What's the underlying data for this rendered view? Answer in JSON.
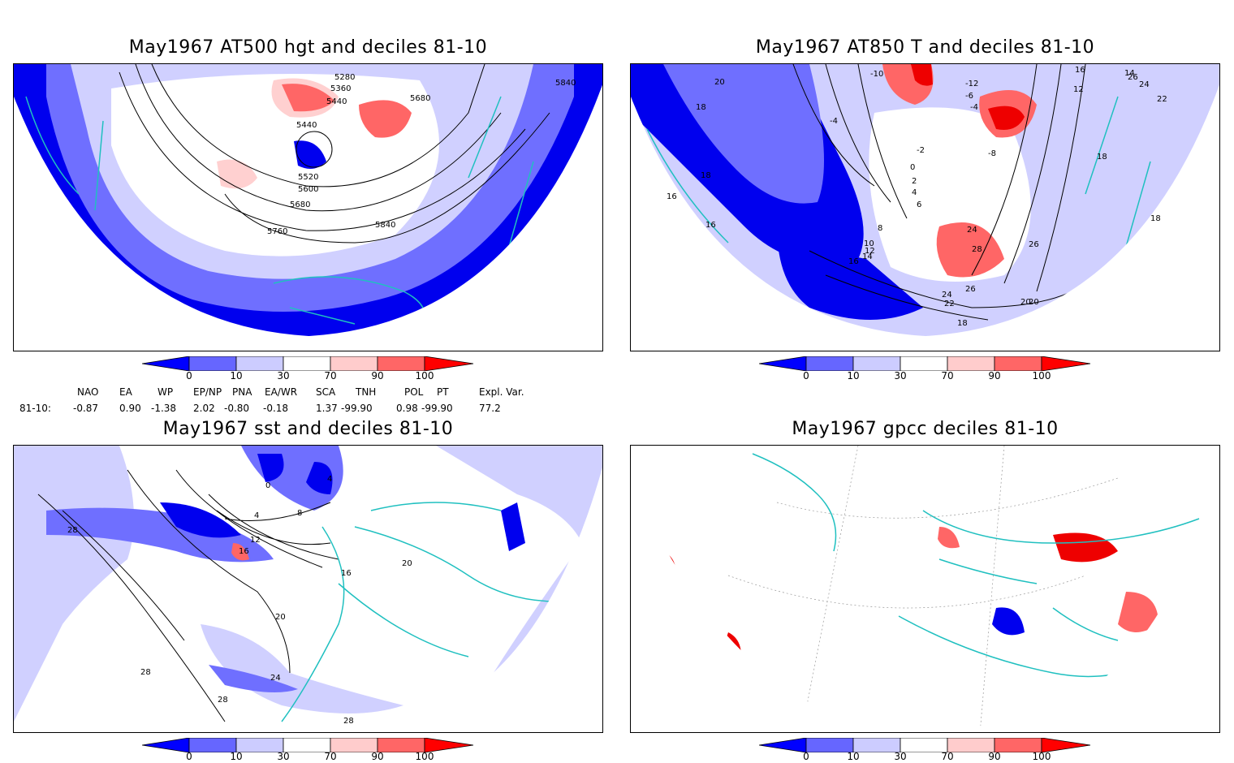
{
  "panels": [
    {
      "title": "May1967 AT500 hgt and deciles 81-10",
      "contour_labels": [
        "5280",
        "5360",
        "5440",
        "5680",
        "5840",
        "5440",
        "5520",
        "5600",
        "5680",
        "5760",
        "5840"
      ]
    },
    {
      "title": "May1967 AT850 T and deciles 81-10",
      "contour_labels": [
        "20",
        "-10",
        "-12",
        "-6",
        "-4",
        "14",
        "16",
        "12",
        "22",
        "26",
        "24",
        "18",
        "-4",
        "-8",
        "-2",
        "0",
        "2",
        "4",
        "6",
        "8",
        "10",
        "12",
        "14",
        "16",
        "16",
        "18",
        "18",
        "16",
        "18",
        "26",
        "28",
        "24",
        "20",
        "22",
        "26",
        "24",
        "20",
        "18"
      ]
    },
    {
      "title": "May1967 sst and deciles 81-10",
      "contour_labels": [
        "0",
        "4",
        "8",
        "4",
        "12",
        "16",
        "16",
        "20",
        "20",
        "24",
        "28",
        "28",
        "28",
        "28"
      ]
    },
    {
      "title": "May1967 gpcc deciles 81-10",
      "contour_labels": []
    }
  ],
  "colorbar": {
    "ticks": [
      "0",
      "10",
      "30",
      "70",
      "90",
      "100"
    ],
    "colors": [
      "#0000ff",
      "#6666ff",
      "#ccccff",
      "#ffffff",
      "#ffcccc",
      "#ff6666",
      "#ff0000"
    ]
  },
  "indices": {
    "headers": [
      "NAO",
      "EA",
      "WP",
      "EP/NP",
      "PNA",
      "EA/WR",
      "SCA",
      "TNH",
      "POL",
      "PT",
      "Expl. Var."
    ],
    "row_label": "81-10:",
    "values": [
      "-0.87",
      "0.90",
      "-1.38",
      "2.02",
      "-0.80",
      "-0.18",
      "1.37",
      "-99.90",
      "0.98",
      "-99.90",
      "77.2"
    ]
  },
  "colors": {
    "coast": "#20c0c0",
    "deep_blue": "#0000ee",
    "mid_blue": "#6f6fff",
    "light_blue": "#d0d0ff",
    "light_red": "#ffd0d0",
    "mid_red": "#ff6666",
    "deep_red": "#ee0000"
  }
}
